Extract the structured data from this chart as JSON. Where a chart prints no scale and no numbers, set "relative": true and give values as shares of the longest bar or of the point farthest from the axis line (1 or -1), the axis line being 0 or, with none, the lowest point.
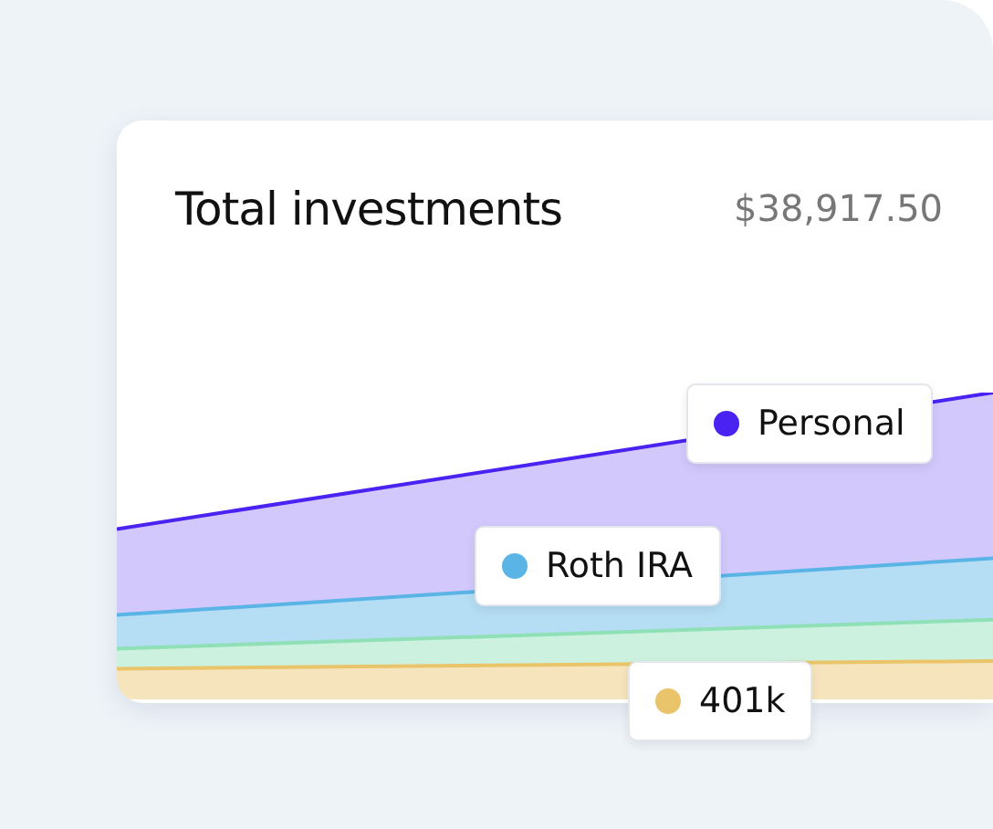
{
  "chart_data": {
    "type": "area",
    "title": "Total investments",
    "subtitle": "$38,917.50",
    "relative": true,
    "stacked": true,
    "legend": "right",
    "categories": [
      null,
      null
    ],
    "series": [
      {
        "name": "401k",
        "color": "#e9c46a",
        "values": [
          0.1,
          0.125
        ]
      },
      {
        "color": "#8fe0b6",
        "values": [
          0.065,
          0.135
        ]
      },
      {
        "name": "Roth IRA",
        "color": "#5ab4e6",
        "values": [
          0.11,
          0.2
        ]
      },
      {
        "name": "Personal",
        "color": "#4a22f2",
        "values": [
          0.28,
          0.54
        ]
      }
    ]
  }
}
